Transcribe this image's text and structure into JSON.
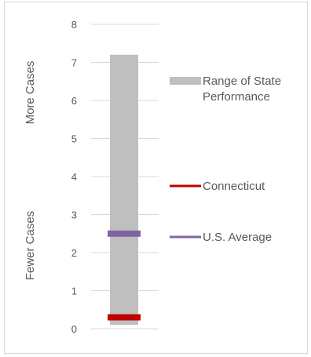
{
  "chart_data": {
    "type": "bar",
    "categories": [
      ""
    ],
    "ylim": [
      0,
      8
    ],
    "yticks": [
      0,
      1,
      2,
      3,
      4,
      5,
      6,
      7,
      8
    ],
    "grid": true,
    "range_bar": {
      "name": "Range of State Performance",
      "low": 0.1,
      "high": 7.2,
      "color": "#bfbfbf"
    },
    "markers": [
      {
        "name": "Connecticut",
        "value": 0.3,
        "color": "#c00000"
      },
      {
        "name": "U.S. Average",
        "value": 2.5,
        "color": "#8064a2"
      }
    ],
    "side_labels": {
      "top": "More Cases",
      "bottom": "Fewer Cases"
    },
    "legend": [
      {
        "label": "Range of State Performance",
        "color": "#bfbfbf",
        "type": "box"
      },
      {
        "label": "Connecticut",
        "color": "#c00000",
        "type": "line"
      },
      {
        "label": "U.S. Average",
        "color": "#8064a2",
        "type": "line"
      }
    ]
  }
}
